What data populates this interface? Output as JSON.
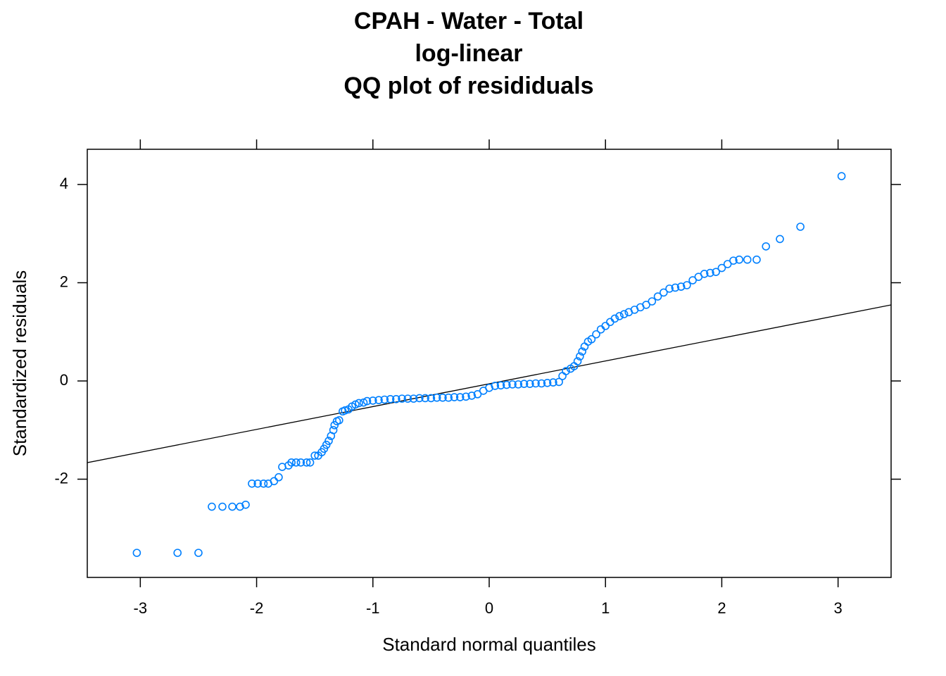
{
  "chart_data": {
    "type": "scatter",
    "title": [
      "CPAH - Water - Total",
      "log-linear",
      "QQ plot of resididuals"
    ],
    "x_label": "Standard normal quantiles",
    "y_label": "Standardized residuals",
    "xlim": [
      -3.456,
      3.456
    ],
    "ylim": [
      -4.0,
      4.717
    ],
    "xticks": [
      -3,
      -2,
      -1,
      0,
      1,
      2,
      3
    ],
    "yticks": [
      -2,
      0,
      2,
      4
    ],
    "color": "#0080ff",
    "reference_line": {
      "x": [
        -3.456,
        3.456
      ],
      "y": [
        -1.663,
        1.548
      ],
      "color": "#000000"
    },
    "x": [
      -3.03,
      -2.68,
      -2.5,
      -2.385,
      -2.294,
      -2.209,
      -2.143,
      -2.094,
      -2.04,
      -1.99,
      -1.94,
      -1.9,
      -1.85,
      -1.81,
      -1.78,
      -1.725,
      -1.7,
      -1.66,
      -1.62,
      -1.57,
      -1.54,
      -1.5,
      -1.47,
      -1.44,
      -1.42,
      -1.4,
      -1.38,
      -1.36,
      -1.34,
      -1.33,
      -1.31,
      -1.29,
      -1.26,
      -1.24,
      -1.21,
      -1.18,
      -1.15,
      -1.12,
      -1.08,
      -1.05,
      -1.0,
      -0.95,
      -0.9,
      -0.85,
      -0.8,
      -0.75,
      -0.7,
      -0.65,
      -0.6,
      -0.55,
      -0.5,
      -0.45,
      -0.4,
      -0.35,
      -0.3,
      -0.25,
      -0.2,
      -0.15,
      -0.1,
      -0.05,
      0,
      0.05,
      0.1,
      0.15,
      0.2,
      0.25,
      0.3,
      0.35,
      0.4,
      0.45,
      0.5,
      0.55,
      0.6,
      0.63,
      0.66,
      0.7,
      0.73,
      0.76,
      0.78,
      0.8,
      0.82,
      0.85,
      0.88,
      0.92,
      0.96,
      1.0,
      1.04,
      1.08,
      1.12,
      1.16,
      1.2,
      1.25,
      1.3,
      1.35,
      1.4,
      1.45,
      1.5,
      1.55,
      1.6,
      1.65,
      1.7,
      1.75,
      1.8,
      1.85,
      1.9,
      1.95,
      2.0,
      2.05,
      2.1,
      2.15,
      2.22,
      2.3,
      2.38,
      2.5,
      2.676,
      3.03
    ],
    "values": [
      -3.5,
      -3.5,
      -3.5,
      -2.56,
      -2.56,
      -2.56,
      -2.56,
      -2.52,
      -2.09,
      -2.09,
      -2.09,
      -2.09,
      -2.04,
      -1.96,
      -1.75,
      -1.72,
      -1.66,
      -1.66,
      -1.66,
      -1.66,
      -1.66,
      -1.52,
      -1.52,
      -1.45,
      -1.38,
      -1.3,
      -1.22,
      -1.12,
      -1.0,
      -0.9,
      -0.82,
      -0.8,
      -0.62,
      -0.6,
      -0.58,
      -0.52,
      -0.48,
      -0.45,
      -0.44,
      -0.41,
      -0.4,
      -0.39,
      -0.38,
      -0.37,
      -0.37,
      -0.36,
      -0.36,
      -0.36,
      -0.35,
      -0.35,
      -0.35,
      -0.34,
      -0.34,
      -0.34,
      -0.33,
      -0.33,
      -0.32,
      -0.3,
      -0.27,
      -0.2,
      -0.14,
      -0.1,
      -0.09,
      -0.08,
      -0.07,
      -0.07,
      -0.06,
      -0.06,
      -0.05,
      -0.05,
      -0.04,
      -0.03,
      -0.02,
      0.1,
      0.2,
      0.25,
      0.3,
      0.4,
      0.5,
      0.6,
      0.7,
      0.8,
      0.85,
      0.95,
      1.05,
      1.12,
      1.2,
      1.27,
      1.32,
      1.36,
      1.4,
      1.45,
      1.5,
      1.55,
      1.62,
      1.72,
      1.8,
      1.88,
      1.9,
      1.92,
      1.95,
      2.05,
      2.12,
      2.18,
      2.2,
      2.22,
      2.3,
      2.38,
      2.45,
      2.47,
      2.47,
      2.47,
      2.74,
      2.89,
      3.14,
      4.17
    ]
  }
}
